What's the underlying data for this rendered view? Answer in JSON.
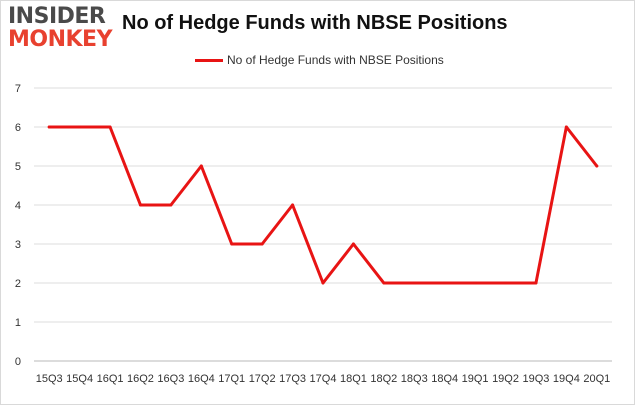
{
  "header": {
    "logo_line1": "INSIDER",
    "logo_line2": "MONKEY",
    "title": "No of Hedge Funds with NBSE Positions"
  },
  "colors": {
    "series": "#e81414",
    "grid": "#dcdcdc",
    "axis_text": "#333333"
  },
  "chart_data": {
    "type": "line",
    "title": "No of Hedge Funds with NBSE Positions",
    "xlabel": "",
    "ylabel": "",
    "ylim": [
      0,
      7
    ],
    "yticks": [
      0,
      1,
      2,
      3,
      4,
      5,
      6,
      7
    ],
    "grid": true,
    "legend_position": "top-center",
    "categories": [
      "15Q3",
      "15Q4",
      "16Q1",
      "16Q2",
      "16Q3",
      "16Q4",
      "17Q1",
      "17Q2",
      "17Q3",
      "17Q4",
      "18Q1",
      "18Q2",
      "18Q3",
      "18Q4",
      "19Q1",
      "19Q2",
      "19Q3",
      "19Q4",
      "20Q1"
    ],
    "series": [
      {
        "name": "No of Hedge Funds with NBSE Positions",
        "values": [
          6,
          6,
          6,
          4,
          4,
          5,
          3,
          3,
          4,
          2,
          3,
          2,
          2,
          2,
          2,
          2,
          2,
          6,
          5
        ]
      }
    ]
  }
}
